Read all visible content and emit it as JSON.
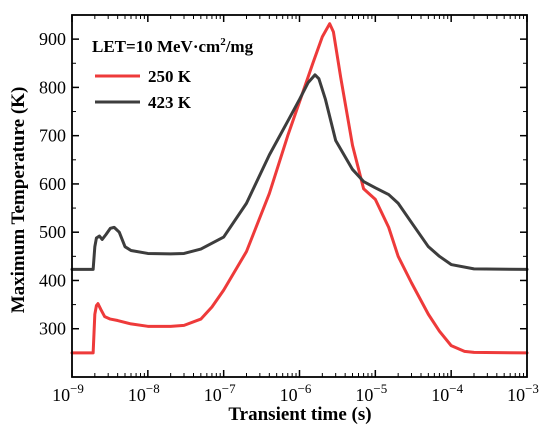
{
  "chart_data": {
    "type": "line",
    "xscale": "log",
    "xlim": [
      1e-09,
      0.001
    ],
    "ylim": [
      200,
      950
    ],
    "xlabel": "Transient time (s)",
    "ylabel": "Maximum Temperature (K)",
    "annotation": {
      "prefix": "LET=10 MeV·cm",
      "sup": "2",
      "suffix": "/mg"
    },
    "xticks": [
      {
        "value": 1e-09,
        "base": "10",
        "exp": "−9"
      },
      {
        "value": 1e-08,
        "base": "10",
        "exp": "−8"
      },
      {
        "value": 1e-07,
        "base": "10",
        "exp": "−7"
      },
      {
        "value": 1e-06,
        "base": "10",
        "exp": "−6"
      },
      {
        "value": 1e-05,
        "base": "10",
        "exp": "−5"
      },
      {
        "value": 0.0001,
        "base": "10",
        "exp": "−4"
      },
      {
        "value": 0.001,
        "base": "10",
        "exp": "−3"
      }
    ],
    "yticks": [
      300,
      400,
      500,
      600,
      700,
      800,
      900
    ],
    "legend_position": "top-left",
    "series": [
      {
        "name": "250 K",
        "color": "#ee3a3a",
        "points": [
          [
            1e-09,
            250
          ],
          [
            1.9e-09,
            250
          ],
          [
            2e-09,
            330
          ],
          [
            2.1e-09,
            348
          ],
          [
            2.2e-09,
            352
          ],
          [
            2.4e-09,
            340
          ],
          [
            2.7e-09,
            325
          ],
          [
            3.2e-09,
            320
          ],
          [
            4e-09,
            317
          ],
          [
            6e-09,
            310
          ],
          [
            1e-08,
            305
          ],
          [
            2e-08,
            305
          ],
          [
            3e-08,
            307
          ],
          [
            5e-08,
            320
          ],
          [
            7e-08,
            345
          ],
          [
            1e-07,
            380
          ],
          [
            2e-07,
            460
          ],
          [
            4e-07,
            580
          ],
          [
            7e-07,
            700
          ],
          [
            1e-06,
            770
          ],
          [
            1.5e-06,
            850
          ],
          [
            2e-06,
            905
          ],
          [
            2.5e-06,
            932
          ],
          [
            2.8e-06,
            915
          ],
          [
            3.5e-06,
            820
          ],
          [
            5e-06,
            680
          ],
          [
            7e-06,
            590
          ],
          [
            1e-05,
            568
          ],
          [
            1.5e-05,
            510
          ],
          [
            2e-05,
            450
          ],
          [
            3e-05,
            395
          ],
          [
            5e-05,
            330
          ],
          [
            7e-05,
            295
          ],
          [
            0.0001,
            265
          ],
          [
            0.00015,
            253
          ],
          [
            0.0002,
            251
          ],
          [
            0.001,
            250
          ]
        ]
      },
      {
        "name": "423 K",
        "color": "#3d3d3d",
        "points": [
          [
            1e-09,
            423
          ],
          [
            1.9e-09,
            423
          ],
          [
            2e-09,
            470
          ],
          [
            2.1e-09,
            488
          ],
          [
            2.3e-09,
            492
          ],
          [
            2.5e-09,
            485
          ],
          [
            2.8e-09,
            495
          ],
          [
            3.2e-09,
            508
          ],
          [
            3.6e-09,
            510
          ],
          [
            4.2e-09,
            500
          ],
          [
            5e-09,
            470
          ],
          [
            6e-09,
            462
          ],
          [
            1e-08,
            456
          ],
          [
            2e-08,
            455
          ],
          [
            3e-08,
            456
          ],
          [
            5e-08,
            465
          ],
          [
            1e-07,
            490
          ],
          [
            2e-07,
            560
          ],
          [
            4e-07,
            660
          ],
          [
            7e-07,
            730
          ],
          [
            1e-06,
            775
          ],
          [
            1.3e-06,
            810
          ],
          [
            1.6e-06,
            826
          ],
          [
            1.8e-06,
            818
          ],
          [
            2.2e-06,
            775
          ],
          [
            3e-06,
            690
          ],
          [
            5e-06,
            630
          ],
          [
            7e-06,
            605
          ],
          [
            1e-05,
            592
          ],
          [
            1.5e-05,
            578
          ],
          [
            2e-05,
            560
          ],
          [
            3e-05,
            520
          ],
          [
            5e-05,
            470
          ],
          [
            7e-05,
            450
          ],
          [
            0.0001,
            433
          ],
          [
            0.0002,
            424
          ],
          [
            0.001,
            423
          ]
        ]
      }
    ]
  }
}
